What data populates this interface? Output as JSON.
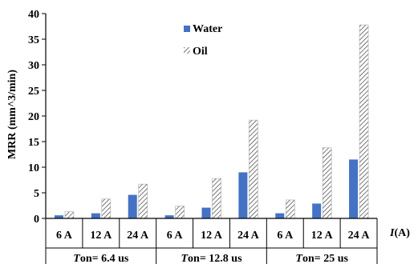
{
  "chart_data": {
    "type": "bar",
    "ylabel": "MRR (mm^3/min)",
    "xlabel_italic": "I",
    "xlabel_rest": "(A)",
    "ylim": [
      0,
      40
    ],
    "yticks": [
      0,
      5,
      10,
      15,
      20,
      25,
      30,
      35,
      40
    ],
    "grid": false,
    "legend_position": "top-center",
    "categories": [
      "6 A",
      "12 A",
      "24 A",
      "6 A",
      "12 A",
      "24 A",
      "6 A",
      "12 A",
      "24 A"
    ],
    "groups": [
      {
        "italic": "T",
        "rest": "on= 6.4 us"
      },
      {
        "italic": "T",
        "rest": "on= 12.8  us"
      },
      {
        "italic": "T",
        "rest": "on= 25  us"
      }
    ],
    "series": [
      {
        "name": "Water",
        "color": "#4472C4",
        "pattern": "solid",
        "values": [
          0.6,
          1.0,
          4.6,
          0.6,
          2.1,
          9.0,
          1.0,
          2.9,
          11.5
        ]
      },
      {
        "name": "Oil",
        "color": "#404040",
        "pattern": "hatch",
        "values": [
          1.3,
          3.8,
          6.7,
          2.4,
          7.8,
          19.2,
          3.6,
          13.8,
          37.8
        ]
      }
    ]
  }
}
